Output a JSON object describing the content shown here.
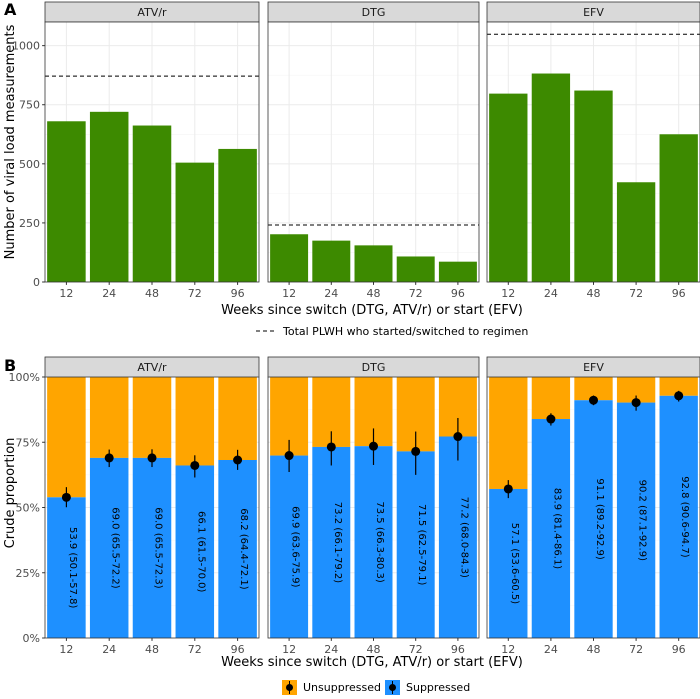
{
  "colors": {
    "green": "#3d8a00",
    "orange": "#ffa500",
    "blue": "#1e90ff",
    "grid": "#ebebeb",
    "strip": "#d9d9d9",
    "panel_border": "#333333"
  },
  "chart_data": [
    {
      "type": "bar",
      "panel_tag": "A",
      "facets": [
        "ATV/r",
        "DTG",
        "EFV"
      ],
      "categories": [
        "12",
        "24",
        "48",
        "72",
        "96"
      ],
      "series": [
        {
          "name": "ATV/r",
          "values": [
            680,
            720,
            662,
            505,
            563
          ]
        },
        {
          "name": "DTG",
          "values": [
            202,
            175,
            155,
            108,
            86
          ]
        },
        {
          "name": "EFV",
          "values": [
            797,
            882,
            810,
            422,
            625
          ]
        }
      ],
      "reference_lines": [
        {
          "facet": "ATV/r",
          "value": 871
        },
        {
          "facet": "DTG",
          "value": 241
        },
        {
          "facet": "EFV",
          "value": 1048
        }
      ],
      "ylim": [
        0,
        1100
      ],
      "yticks": [
        0,
        250,
        500,
        750,
        1000
      ],
      "ytick_labels": [
        "0",
        "250",
        "500",
        "750",
        "1000"
      ],
      "xlabel": "Weeks since switch (DTG, ATV/r) or start (EFV)",
      "ylabel": "Number of viral load measurements",
      "legend": {
        "label": "Total PLWH who started/switched to regimen",
        "position": "bottom"
      }
    },
    {
      "type": "stacked-bar",
      "panel_tag": "B",
      "facets": [
        "ATV/r",
        "DTG",
        "EFV"
      ],
      "categories": [
        "12",
        "24",
        "48",
        "72",
        "96"
      ],
      "series": [
        {
          "facet": "ATV/r",
          "suppressed": [
            53.9,
            69.0,
            69.0,
            66.1,
            68.2
          ],
          "ci_low": [
            50.1,
            65.5,
            65.5,
            61.5,
            64.4
          ],
          "ci_high": [
            57.8,
            72.2,
            72.3,
            70.0,
            72.1
          ],
          "labels": [
            "53.9 (50.1-57.8)",
            "69.0 (65.5-72.2)",
            "69.0 (65.5-72.3)",
            "66.1 (61.5-70.0)",
            "68.2 (64.4-72.1)"
          ]
        },
        {
          "facet": "DTG",
          "suppressed": [
            69.9,
            73.2,
            73.5,
            71.5,
            77.2
          ],
          "ci_low": [
            63.6,
            66.1,
            66.3,
            62.5,
            68.0
          ],
          "ci_high": [
            75.9,
            79.2,
            80.3,
            79.1,
            84.3
          ],
          "labels": [
            "69.9 (63.6-75.9)",
            "73.2 (66.1-79.2)",
            "73.5 (66.3-80.3)",
            "71.5 (62.5-79.1)",
            "77.2 (68.0-84.3)"
          ]
        },
        {
          "facet": "EFV",
          "suppressed": [
            57.1,
            83.9,
            91.1,
            90.2,
            92.8
          ],
          "ci_low": [
            53.6,
            81.4,
            89.2,
            87.1,
            90.6
          ],
          "ci_high": [
            60.5,
            86.1,
            92.9,
            92.9,
            94.7
          ],
          "labels": [
            "57.1 (53.6-60.5)",
            "83.9 (81.4-86.1)",
            "91.1 (89.2-92.9)",
            "90.2 (87.1-92.9)",
            "92.8 (90.6-94.7)"
          ]
        }
      ],
      "ylim": [
        0,
        100
      ],
      "yticks": [
        0,
        25,
        50,
        75,
        100
      ],
      "ytick_labels": [
        "0%",
        "25%",
        "50%",
        "75%",
        "100%"
      ],
      "xlabel": "Weeks since switch (DTG, ATV/r) or start (EFV)",
      "ylabel": "Crude proportion",
      "legend": {
        "entries": [
          "Unsuppressed",
          "Suppressed"
        ],
        "position": "bottom"
      }
    }
  ]
}
